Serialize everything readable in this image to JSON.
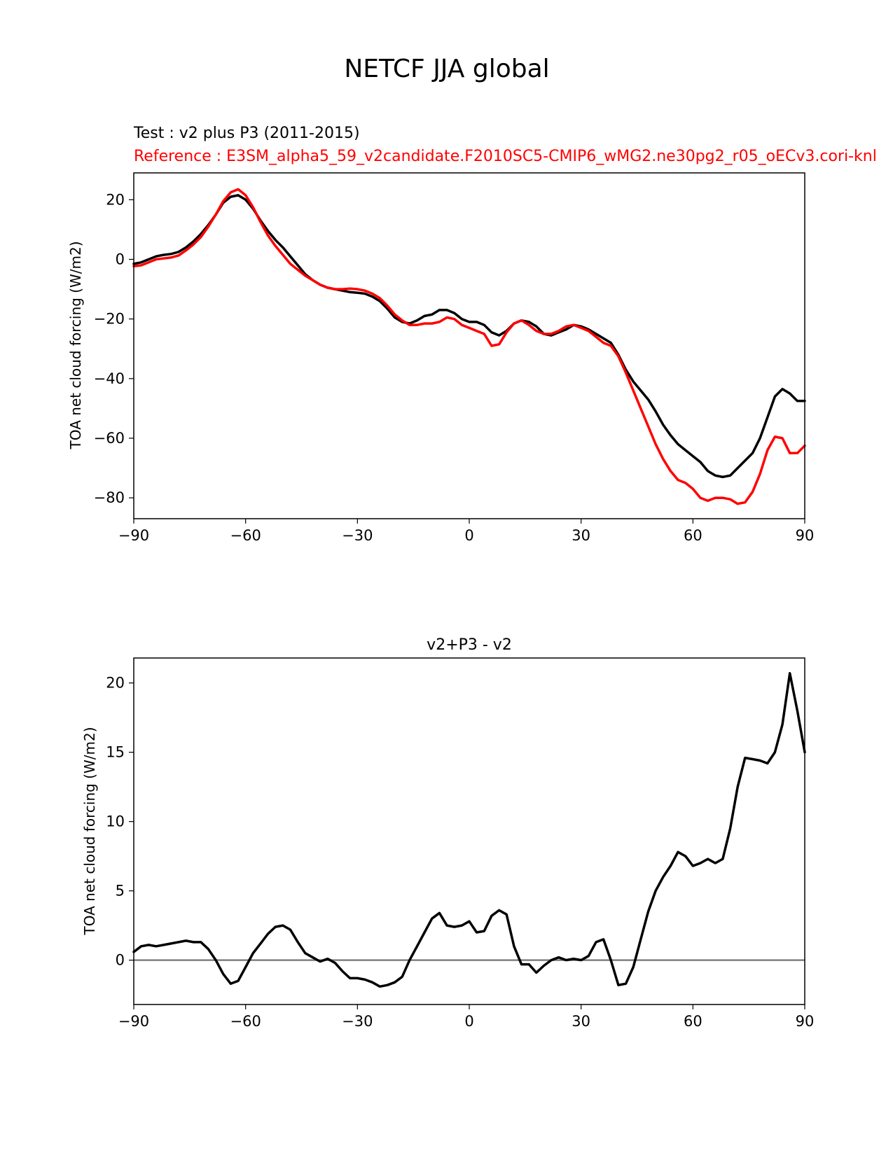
{
  "figure_title": "NETCF JJA global",
  "chart_data": [
    {
      "type": "line",
      "title_test": "Test : v2 plus P3 (2011-2015)",
      "title_reference": "Reference : E3SM_alpha5_59_v2candidate.F2010SC5-CMIP6_wMG2.ne30pg2_r05_oECv3.cori-knl",
      "xlabel": "",
      "ylabel": "TOA net cloud forcing (W/m2)",
      "xlim": [
        -90,
        90
      ],
      "ylim": [
        -87,
        29
      ],
      "xticks": [
        -90,
        -60,
        -30,
        0,
        30,
        60,
        90
      ],
      "xtick_labels": [
        "−90",
        "−60",
        "−30",
        "0",
        "30",
        "60",
        "90"
      ],
      "yticks": [
        20,
        0,
        -20,
        -40,
        -60,
        -80
      ],
      "ytick_labels": [
        "20",
        "0",
        "−20",
        "−40",
        "−60",
        "−80"
      ],
      "series": [
        {
          "name": "Test",
          "color": "#000000",
          "points": [
            [
              -90,
              -1.5
            ],
            [
              -88,
              -1
            ],
            [
              -86,
              0
            ],
            [
              -84,
              1
            ],
            [
              -82,
              1.5
            ],
            [
              -80,
              1.8
            ],
            [
              -78,
              2.5
            ],
            [
              -76,
              4
            ],
            [
              -74,
              6
            ],
            [
              -72,
              8.5
            ],
            [
              -70,
              11.5
            ],
            [
              -68,
              15
            ],
            [
              -66,
              19
            ],
            [
              -64,
              21
            ],
            [
              -62,
              21.5
            ],
            [
              -60,
              20
            ],
            [
              -58,
              17
            ],
            [
              -56,
              13
            ],
            [
              -54,
              9.5
            ],
            [
              -52,
              6.5
            ],
            [
              -50,
              4
            ],
            [
              -48,
              1
            ],
            [
              -46,
              -2
            ],
            [
              -44,
              -5
            ],
            [
              -42,
              -7
            ],
            [
              -40,
              -8.5
            ],
            [
              -38,
              -9.5
            ],
            [
              -36,
              -10
            ],
            [
              -34,
              -10.5
            ],
            [
              -32,
              -11
            ],
            [
              -30,
              -11.2
            ],
            [
              -28,
              -11.5
            ],
            [
              -26,
              -12.5
            ],
            [
              -24,
              -14
            ],
            [
              -22,
              -16.5
            ],
            [
              -20,
              -19.5
            ],
            [
              -18,
              -21
            ],
            [
              -16,
              -21.5
            ],
            [
              -14,
              -20.5
            ],
            [
              -12,
              -19
            ],
            [
              -10,
              -18.5
            ],
            [
              -8,
              -17
            ],
            [
              -6,
              -17
            ],
            [
              -4,
              -18
            ],
            [
              -2,
              -20
            ],
            [
              0,
              -21
            ],
            [
              2,
              -21
            ],
            [
              4,
              -22
            ],
            [
              6,
              -24.5
            ],
            [
              8,
              -25.5
            ],
            [
              10,
              -24
            ],
            [
              12,
              -21.5
            ],
            [
              14,
              -20.5
            ],
            [
              16,
              -21
            ],
            [
              18,
              -22.5
            ],
            [
              20,
              -25
            ],
            [
              22,
              -25.5
            ],
            [
              24,
              -24.5
            ],
            [
              26,
              -23.5
            ],
            [
              28,
              -22
            ],
            [
              30,
              -22.5
            ],
            [
              32,
              -23.5
            ],
            [
              34,
              -25
            ],
            [
              36,
              -26.5
            ],
            [
              38,
              -28
            ],
            [
              40,
              -32
            ],
            [
              42,
              -37
            ],
            [
              44,
              -41
            ],
            [
              46,
              -44
            ],
            [
              48,
              -47
            ],
            [
              50,
              -51
            ],
            [
              52,
              -55.5
            ],
            [
              54,
              -59
            ],
            [
              56,
              -62
            ],
            [
              58,
              -64
            ],
            [
              60,
              -66
            ],
            [
              62,
              -68
            ],
            [
              64,
              -71
            ],
            [
              66,
              -72.5
            ],
            [
              68,
              -73
            ],
            [
              70,
              -72.5
            ],
            [
              72,
              -70
            ],
            [
              74,
              -67.5
            ],
            [
              76,
              -65
            ],
            [
              78,
              -60
            ],
            [
              80,
              -53
            ],
            [
              82,
              -46
            ],
            [
              84,
              -43.5
            ],
            [
              86,
              -45
            ],
            [
              88,
              -47.5
            ],
            [
              90,
              -47.5
            ]
          ]
        },
        {
          "name": "Reference",
          "color": "#ff0000",
          "points": [
            [
              -90,
              -2.3
            ],
            [
              -88,
              -2
            ],
            [
              -86,
              -1
            ],
            [
              -84,
              0
            ],
            [
              -82,
              0.3
            ],
            [
              -80,
              0.6
            ],
            [
              -78,
              1.3
            ],
            [
              -76,
              3
            ],
            [
              -74,
              5
            ],
            [
              -72,
              7.5
            ],
            [
              -70,
              11
            ],
            [
              -68,
              15
            ],
            [
              -66,
              19.5
            ],
            [
              -64,
              22.5
            ],
            [
              -62,
              23.5
            ],
            [
              -60,
              21.5
            ],
            [
              -58,
              17.5
            ],
            [
              -56,
              12.5
            ],
            [
              -54,
              8
            ],
            [
              -52,
              4.5
            ],
            [
              -50,
              1.5
            ],
            [
              -48,
              -1.5
            ],
            [
              -46,
              -3.5
            ],
            [
              -44,
              -5.5
            ],
            [
              -42,
              -7
            ],
            [
              -40,
              -8.5
            ],
            [
              -38,
              -9.5
            ],
            [
              -36,
              -10
            ],
            [
              -34,
              -10
            ],
            [
              -32,
              -9.8
            ],
            [
              -30,
              -10
            ],
            [
              -28,
              -10.5
            ],
            [
              -26,
              -11.5
            ],
            [
              -24,
              -13
            ],
            [
              -22,
              -15.5
            ],
            [
              -20,
              -18.5
            ],
            [
              -18,
              -20.5
            ],
            [
              -16,
              -22
            ],
            [
              -14,
              -22
            ],
            [
              -12,
              -21.5
            ],
            [
              -10,
              -21.5
            ],
            [
              -8,
              -21
            ],
            [
              -6,
              -19.5
            ],
            [
              -4,
              -20
            ],
            [
              -2,
              -22
            ],
            [
              0,
              -23
            ],
            [
              2,
              -24
            ],
            [
              4,
              -25
            ],
            [
              6,
              -29
            ],
            [
              8,
              -28.5
            ],
            [
              10,
              -24.5
            ],
            [
              12,
              -21.5
            ],
            [
              14,
              -20.5
            ],
            [
              16,
              -22
            ],
            [
              18,
              -24
            ],
            [
              20,
              -25
            ],
            [
              22,
              -25
            ],
            [
              24,
              -24
            ],
            [
              26,
              -22.5
            ],
            [
              28,
              -22
            ],
            [
              30,
              -23
            ],
            [
              32,
              -24
            ],
            [
              34,
              -26
            ],
            [
              36,
              -28
            ],
            [
              38,
              -29
            ],
            [
              40,
              -32.5
            ],
            [
              42,
              -38
            ],
            [
              44,
              -44
            ],
            [
              46,
              -50
            ],
            [
              48,
              -56
            ],
            [
              50,
              -62
            ],
            [
              52,
              -67
            ],
            [
              54,
              -71
            ],
            [
              56,
              -74
            ],
            [
              58,
              -75
            ],
            [
              60,
              -77
            ],
            [
              62,
              -80
            ],
            [
              64,
              -81
            ],
            [
              66,
              -80
            ],
            [
              68,
              -80
            ],
            [
              70,
              -80.5
            ],
            [
              72,
              -82
            ],
            [
              74,
              -81.5
            ],
            [
              76,
              -78
            ],
            [
              78,
              -72
            ],
            [
              80,
              -64
            ],
            [
              82,
              -59.5
            ],
            [
              84,
              -60
            ],
            [
              86,
              -65
            ],
            [
              88,
              -65
            ],
            [
              90,
              -62.5
            ]
          ]
        }
      ]
    },
    {
      "type": "line",
      "title": "v2+P3 - v2",
      "xlabel": "",
      "ylabel": "TOA net cloud forcing (W/m2)",
      "xlim": [
        -90,
        90
      ],
      "ylim": [
        -3.2,
        21.8
      ],
      "xticks": [
        -90,
        -60,
        -30,
        0,
        30,
        60,
        90
      ],
      "xtick_labels": [
        "−90",
        "−60",
        "−30",
        "0",
        "30",
        "60",
        "90"
      ],
      "yticks": [
        20,
        15,
        10,
        5,
        0
      ],
      "ytick_labels": [
        "20",
        "15",
        "10",
        "5",
        "0"
      ],
      "zero_line_color": "#808080",
      "series": [
        {
          "name": "Difference",
          "color": "#000000",
          "points": [
            [
              -90,
              0.6
            ],
            [
              -88,
              1
            ],
            [
              -86,
              1.1
            ],
            [
              -84,
              1
            ],
            [
              -82,
              1.1
            ],
            [
              -80,
              1.2
            ],
            [
              -78,
              1.3
            ],
            [
              -76,
              1.4
            ],
            [
              -74,
              1.3
            ],
            [
              -72,
              1.3
            ],
            [
              -70,
              0.8
            ],
            [
              -68,
              0
            ],
            [
              -66,
              -1
            ],
            [
              -64,
              -1.7
            ],
            [
              -62,
              -1.5
            ],
            [
              -60,
              -0.5
            ],
            [
              -58,
              0.5
            ],
            [
              -56,
              1.2
            ],
            [
              -54,
              1.9
            ],
            [
              -52,
              2.4
            ],
            [
              -50,
              2.5
            ],
            [
              -48,
              2.2
            ],
            [
              -46,
              1.3
            ],
            [
              -44,
              0.5
            ],
            [
              -42,
              0.2
            ],
            [
              -40,
              -0.1
            ],
            [
              -38,
              0.1
            ],
            [
              -36,
              -0.2
            ],
            [
              -34,
              -0.8
            ],
            [
              -32,
              -1.3
            ],
            [
              -30,
              -1.3
            ],
            [
              -28,
              -1.4
            ],
            [
              -26,
              -1.6
            ],
            [
              -24,
              -1.9
            ],
            [
              -22,
              -1.8
            ],
            [
              -20,
              -1.6
            ],
            [
              -18,
              -1.2
            ],
            [
              -16,
              0
            ],
            [
              -14,
              1
            ],
            [
              -12,
              2
            ],
            [
              -10,
              3
            ],
            [
              -8,
              3.4
            ],
            [
              -6,
              2.5
            ],
            [
              -4,
              2.4
            ],
            [
              -2,
              2.5
            ],
            [
              0,
              2.8
            ],
            [
              2,
              2
            ],
            [
              4,
              2.1
            ],
            [
              6,
              3.2
            ],
            [
              8,
              3.6
            ],
            [
              10,
              3.3
            ],
            [
              12,
              1
            ],
            [
              14,
              -0.3
            ],
            [
              16,
              -0.3
            ],
            [
              18,
              -0.9
            ],
            [
              20,
              -0.4
            ],
            [
              22,
              0
            ],
            [
              24,
              0.2
            ],
            [
              26,
              0
            ],
            [
              28,
              0.1
            ],
            [
              30,
              0
            ],
            [
              32,
              0.3
            ],
            [
              34,
              1.3
            ],
            [
              36,
              1.5
            ],
            [
              38,
              0
            ],
            [
              40,
              -1.8
            ],
            [
              42,
              -1.7
            ],
            [
              44,
              -0.5
            ],
            [
              46,
              1.5
            ],
            [
              48,
              3.5
            ],
            [
              50,
              5
            ],
            [
              52,
              6
            ],
            [
              54,
              6.8
            ],
            [
              56,
              7.8
            ],
            [
              58,
              7.5
            ],
            [
              60,
              6.8
            ],
            [
              62,
              7
            ],
            [
              64,
              7.3
            ],
            [
              66,
              7
            ],
            [
              68,
              7.3
            ],
            [
              70,
              9.5
            ],
            [
              72,
              12.5
            ],
            [
              74,
              14.6
            ],
            [
              76,
              14.5
            ],
            [
              78,
              14.4
            ],
            [
              80,
              14.2
            ],
            [
              82,
              15
            ],
            [
              84,
              17
            ],
            [
              86,
              20.7
            ],
            [
              88,
              18
            ],
            [
              90,
              15
            ]
          ]
        }
      ]
    }
  ]
}
